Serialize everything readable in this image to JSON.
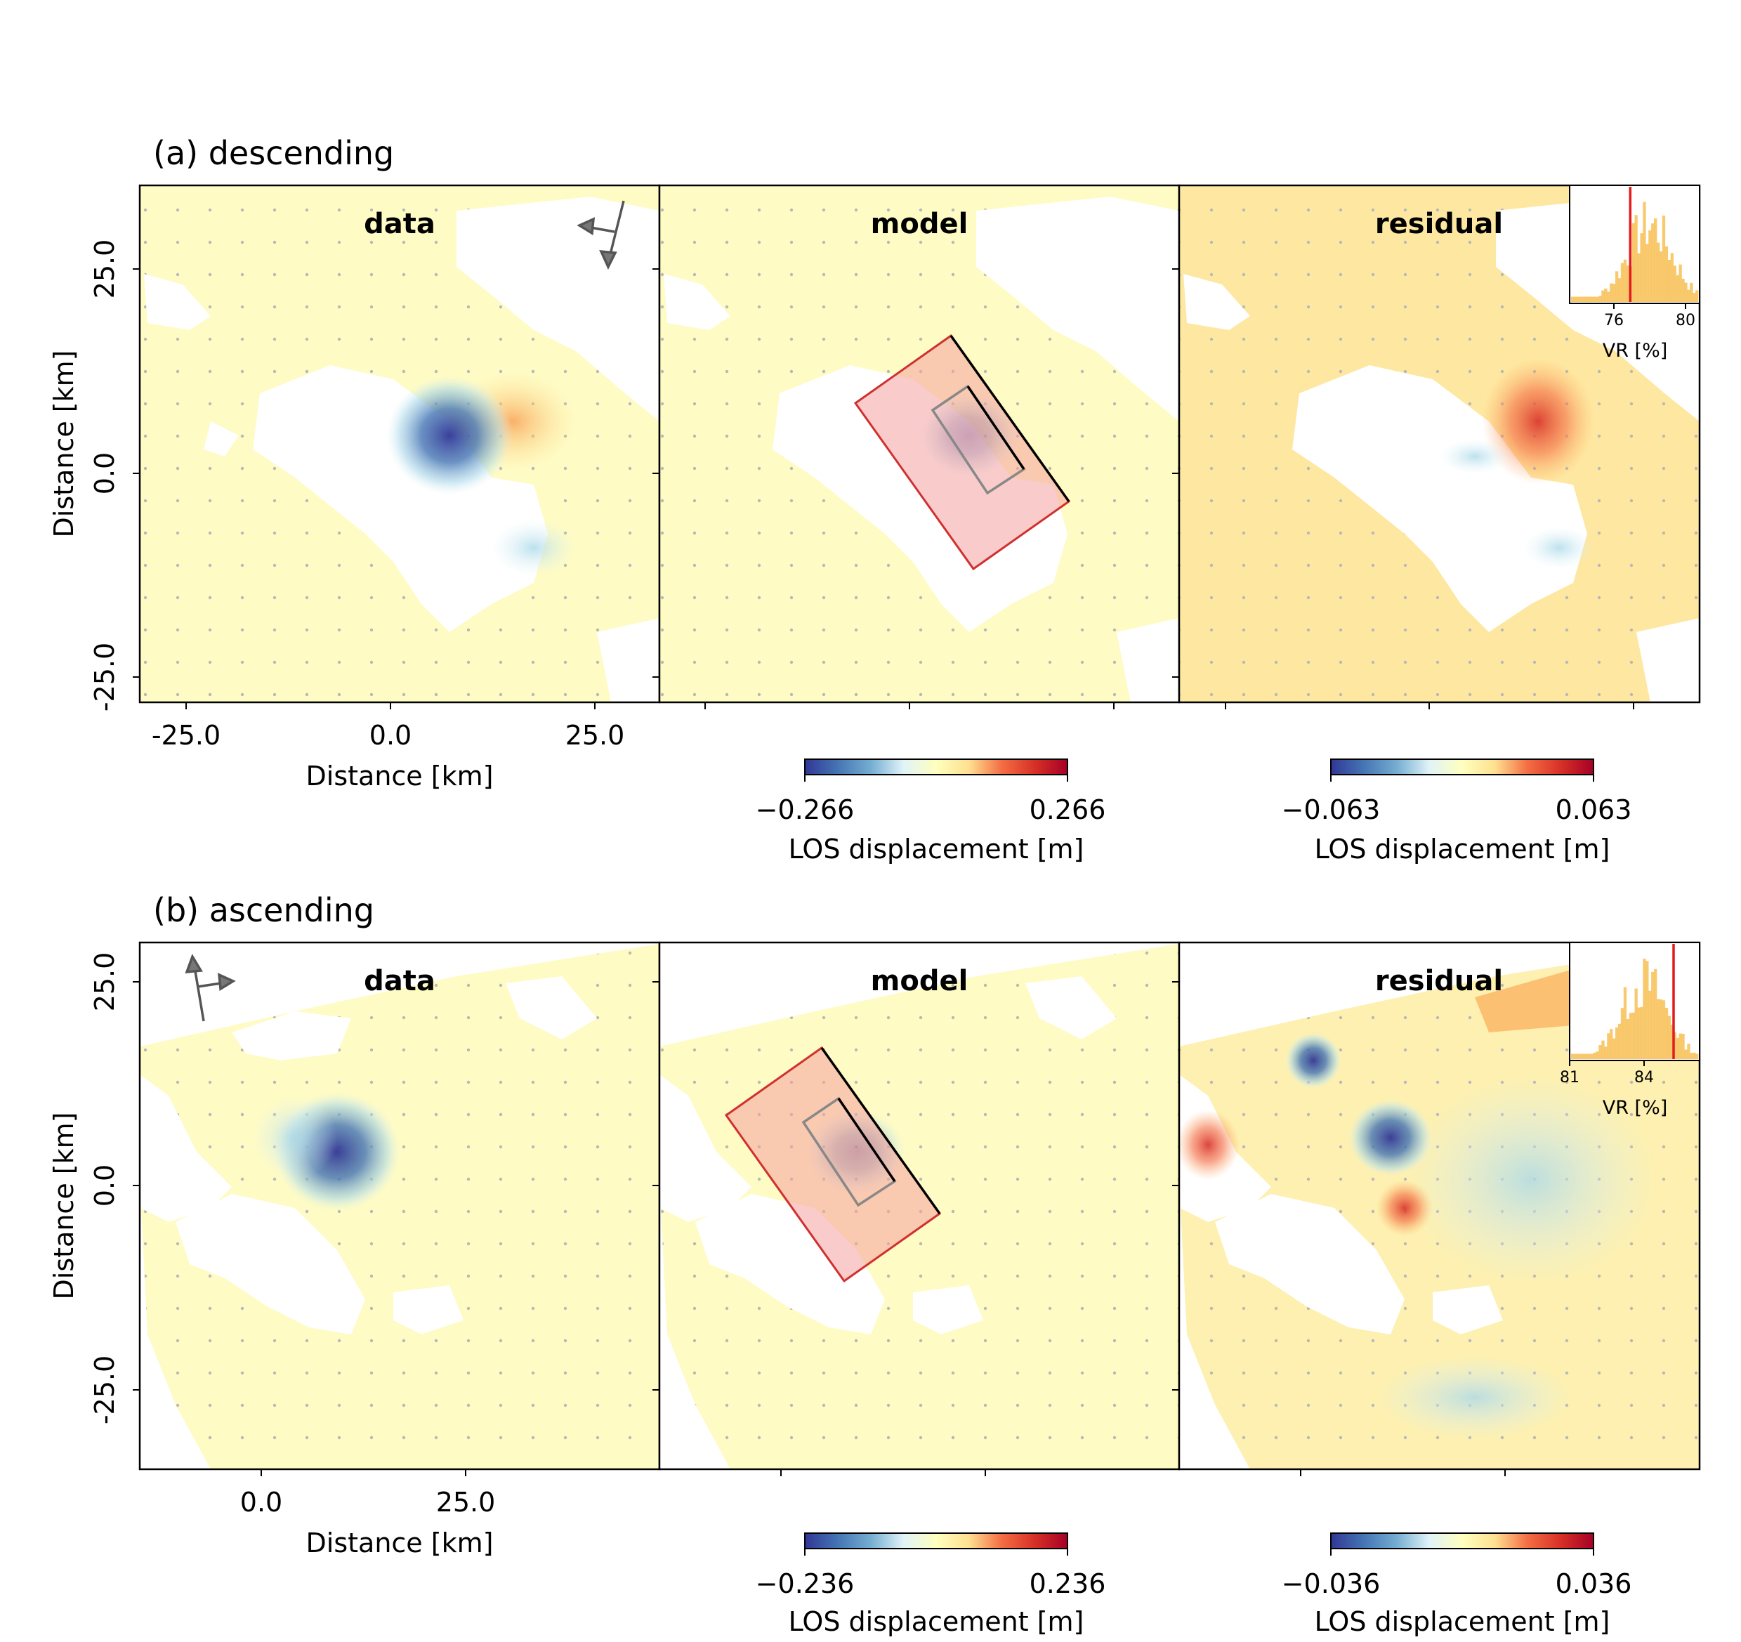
{
  "chart_data": [
    {
      "type": "heatmap",
      "row_title": "(a) descending",
      "panels": [
        {
          "title": "data",
          "xlabel": "Distance [km]",
          "ylabel": "Distance [km]",
          "xticks": [
            "-25.0",
            "0.0",
            "25.0"
          ],
          "yticks": [
            "25.0",
            "0.0",
            "-25.0"
          ]
        },
        {
          "title": "model"
        },
        {
          "title": "residual"
        }
      ],
      "colorbars": [
        {
          "min_label": "−0.266",
          "max_label": "0.266",
          "label": "LOS displacement [m]"
        },
        {
          "min_label": "−0.063",
          "max_label": "0.063",
          "label": "LOS displacement [m]"
        }
      ],
      "inset": {
        "xlabel": "VR [%]",
        "xticks": [
          "76",
          "80"
        ],
        "xlim": [
          74.5,
          80.5
        ],
        "best_value": 77.3
      }
    },
    {
      "type": "heatmap",
      "row_title": "(b) ascending",
      "panels": [
        {
          "title": "data",
          "xlabel": "Distance [km]",
          "ylabel": "Distance [km]",
          "xticks": [
            "0.0",
            "25.0"
          ],
          "yticks": [
            "25.0",
            "0.0",
            "-25.0"
          ]
        },
        {
          "title": "model"
        },
        {
          "title": "residual"
        }
      ],
      "colorbars": [
        {
          "min_label": "−0.236",
          "max_label": "0.236",
          "label": "LOS displacement [m]"
        },
        {
          "min_label": "−0.036",
          "max_label": "0.036",
          "label": "LOS displacement [m]"
        }
      ],
      "inset": {
        "xlabel": "VR [%]",
        "xticks": [
          "81",
          "84"
        ],
        "xlim": [
          81,
          86
        ],
        "best_value": 85.0
      }
    }
  ],
  "colors": {
    "histogram": "#f8bf55",
    "best_fit_line": "#e41a1c",
    "fault_plane": "#f4a0a0",
    "fault_edge": "#d03030"
  }
}
